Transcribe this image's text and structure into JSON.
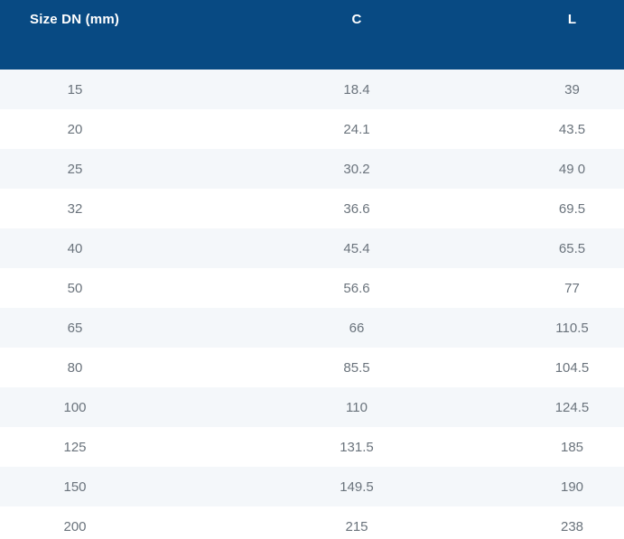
{
  "chart_data": {
    "type": "table",
    "columns": [
      "Size DN (mm)",
      "C",
      "L"
    ],
    "rows": [
      [
        "15",
        "18.4",
        "39"
      ],
      [
        "20",
        "24.1",
        "43.5"
      ],
      [
        "25",
        "30.2",
        "49 0"
      ],
      [
        "32",
        "36.6",
        "69.5"
      ],
      [
        "40",
        "45.4",
        "65.5"
      ],
      [
        "50",
        "56.6",
        "77"
      ],
      [
        "65",
        "66",
        "110.5"
      ],
      [
        "80",
        "85.5",
        "104.5"
      ],
      [
        "100",
        "110",
        "124.5"
      ],
      [
        "125",
        "131.5",
        "185"
      ],
      [
        "150",
        "149.5",
        "190"
      ],
      [
        "200",
        "215",
        "238"
      ]
    ],
    "layout": {
      "striped": true,
      "header_align": [
        "left",
        "center",
        "center"
      ],
      "body_align": [
        "center",
        "center",
        "center"
      ]
    }
  },
  "colors": {
    "header_bg": "#084a83",
    "header_text": "#ffffff",
    "row_alt_bg": "#f4f7fa",
    "row_bg": "#ffffff",
    "cell_text": "#6a737c"
  }
}
